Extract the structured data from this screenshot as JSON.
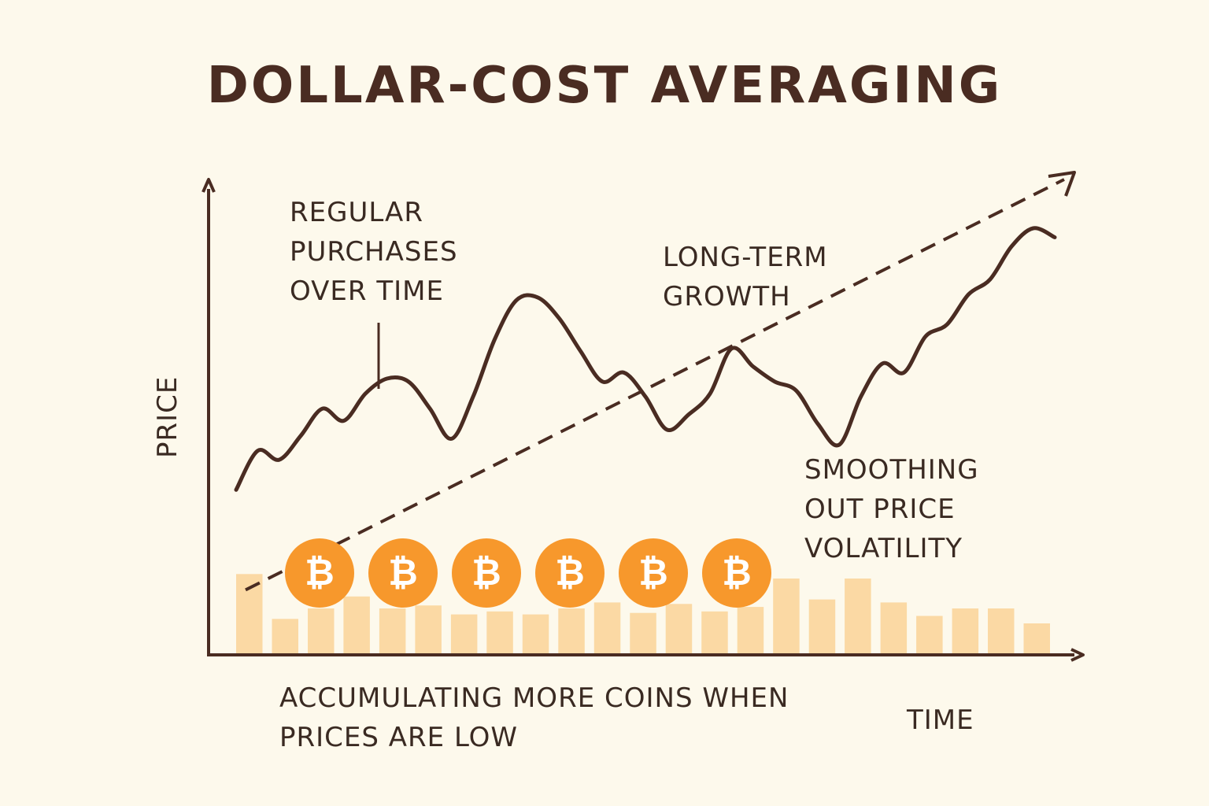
{
  "title": "DOLLAR-COST AVERAGING",
  "annotations": {
    "regular": "REGULAR\nPURCHASES\nOVER TIME",
    "growth": "LONG-TERM\nGROWTH",
    "smoothing": "SMOOTHING\nOUT PRICE\nVOLATILITY",
    "accumulating": "ACCUMULATING MORE COINS WHEN\nPRICES ARE LOW"
  },
  "axes": {
    "x_label": "TIME",
    "y_label": "PRICE"
  },
  "coin_symbol": "₿",
  "coin_count": 6,
  "price_series": [
    0.13,
    0.26,
    0.23,
    0.31,
    0.4,
    0.36,
    0.45,
    0.5,
    0.49,
    0.4,
    0.3,
    0.44,
    0.63,
    0.76,
    0.77,
    0.7,
    0.59,
    0.49,
    0.52,
    0.44,
    0.33,
    0.38,
    0.45,
    0.6,
    0.54,
    0.49,
    0.46,
    0.35,
    0.28,
    0.44,
    0.55,
    0.52,
    0.64,
    0.68,
    0.78,
    0.83,
    0.94,
    1.0,
    0.97
  ],
  "trend": {
    "start": 0.08,
    "end": 0.95
  },
  "bar_values": [
    0.53,
    0.23,
    0.3,
    0.38,
    0.3,
    0.32,
    0.26,
    0.28,
    0.26,
    0.3,
    0.34,
    0.27,
    0.33,
    0.28,
    0.31,
    0.5,
    0.36,
    0.5,
    0.34,
    0.25,
    0.3,
    0.3,
    0.2
  ],
  "colors": {
    "background": "#fdf9ec",
    "text": "#3a2a22",
    "line": "#4a2c22",
    "bar": "#fbd9a4",
    "coin": "#f7982c",
    "coin_text": "#ffffff"
  }
}
